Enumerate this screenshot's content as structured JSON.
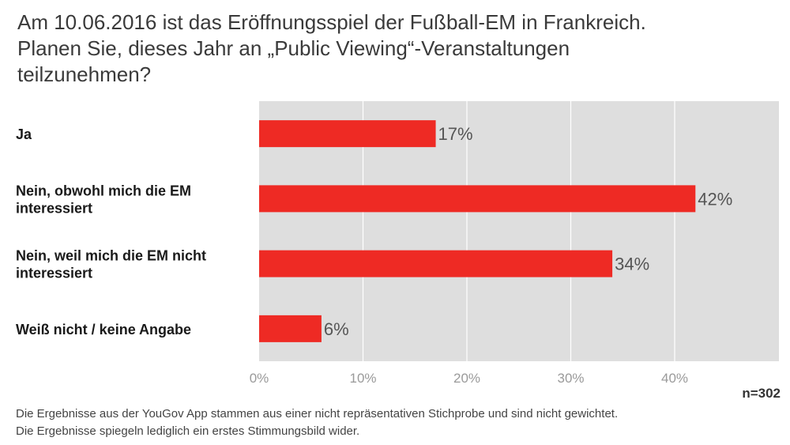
{
  "title_lines": [
    "Am 10.06.2016 ist das Eröffnungsspiel der Fußball-EM in Frankreich.",
    "Planen Sie, dieses Jahr an „Public Viewing“-Veranstaltungen",
    "teilzunehmen?"
  ],
  "sample_size": "n=302",
  "footnote_lines": [
    "Die Ergebnisse aus der YouGov App stammen aus einer nicht repräsentativen Stichprobe und sind nicht gewichtet.",
    "Die Ergebnisse spiegeln lediglich ein erstes Stimmungsbild wider."
  ],
  "colors": {
    "bar": "#ee2a24",
    "plot_bg": "#dedede",
    "grid": "#ffffff"
  },
  "chart_data": {
    "type": "bar",
    "orientation": "horizontal",
    "categories": [
      [
        "Ja"
      ],
      [
        "Nein, obwohl mich die EM",
        "interessiert"
      ],
      [
        "Nein, weil mich die EM nicht",
        "interessiert"
      ],
      [
        "Weiß nicht / keine Angabe"
      ]
    ],
    "values": [
      17,
      42,
      34,
      6
    ],
    "value_labels": [
      "17%",
      "42%",
      "34%",
      "6%"
    ],
    "xlim": [
      0,
      50
    ],
    "xticks": [
      0,
      10,
      20,
      30,
      40
    ],
    "xtick_labels": [
      "0%",
      "10%",
      "20%",
      "30%",
      "40%"
    ],
    "grid": true
  }
}
